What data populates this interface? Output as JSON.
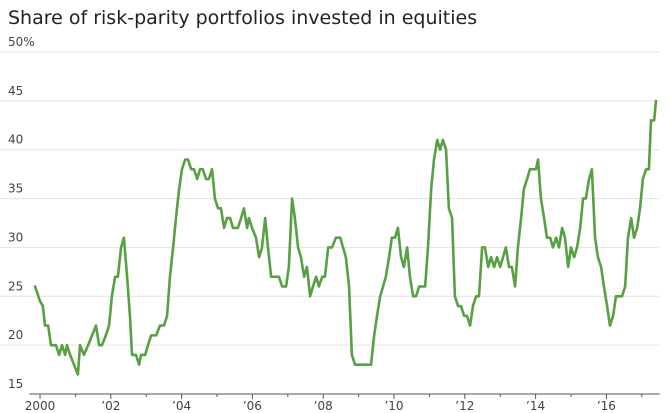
{
  "chart_data": {
    "type": "line",
    "title": "Share of risk-parity portfolios invested in equities",
    "color": "#57a043",
    "grid": true,
    "xlim": [
      1999.7,
      2017.5
    ],
    "ylim": [
      15,
      50
    ],
    "xticks": [
      2000,
      {
        "value": 2002,
        "label": "’02"
      },
      {
        "value": 2004,
        "label": "’04"
      },
      {
        "value": 2006,
        "label": "’06"
      },
      {
        "value": 2008,
        "label": "’08"
      },
      {
        "value": 2010,
        "label": "’10"
      },
      {
        "value": 2012,
        "label": "’12"
      },
      {
        "value": 2014,
        "label": "’14"
      },
      {
        "value": 2016,
        "label": "’16"
      }
    ],
    "xminorticks": [
      2001,
      2003,
      2005,
      2007,
      2009,
      2011,
      2013,
      2015,
      2017
    ],
    "yticks": [
      15,
      20,
      25,
      30,
      35,
      40,
      45,
      {
        "value": 50,
        "label": "50%"
      }
    ],
    "x": [
      1999.86,
      2000.0,
      2000.08,
      2000.14,
      2000.23,
      2000.31,
      2000.45,
      2000.54,
      2000.62,
      2000.71,
      2000.76,
      2000.85,
      2000.96,
      2001.07,
      2001.13,
      2001.24,
      2001.36,
      2001.47,
      2001.58,
      2001.67,
      2001.75,
      2001.86,
      2001.95,
      2002.03,
      2002.12,
      2002.2,
      2002.29,
      2002.37,
      2002.46,
      2002.54,
      2002.6,
      2002.71,
      2002.8,
      2002.85,
      2002.97,
      2003.05,
      2003.14,
      2003.28,
      2003.39,
      2003.5,
      2003.59,
      2003.67,
      2003.76,
      2003.84,
      2003.93,
      2004.01,
      2004.1,
      2004.18,
      2004.27,
      2004.35,
      2004.44,
      2004.52,
      2004.6,
      2004.69,
      2004.77,
      2004.86,
      2004.94,
      2005.03,
      2005.11,
      2005.2,
      2005.28,
      2005.37,
      2005.45,
      2005.59,
      2005.68,
      2005.76,
      2005.85,
      2005.9,
      2005.99,
      2006.1,
      2006.19,
      2006.27,
      2006.36,
      2006.44,
      2006.53,
      2006.64,
      2006.75,
      2006.84,
      2006.95,
      2007.03,
      2007.12,
      2007.2,
      2007.29,
      2007.37,
      2007.46,
      2007.54,
      2007.63,
      2007.71,
      2007.8,
      2007.88,
      2007.97,
      2008.05,
      2008.14,
      2008.25,
      2008.36,
      2008.48,
      2008.56,
      2008.64,
      2008.73,
      2008.81,
      2008.9,
      2009.18,
      2009.35,
      2009.44,
      2009.52,
      2009.61,
      2009.69,
      2009.77,
      2009.86,
      2009.94,
      2010.03,
      2010.11,
      2010.2,
      2010.28,
      2010.37,
      2010.45,
      2010.54,
      2010.62,
      2010.71,
      2010.79,
      2010.88,
      2010.96,
      2011.05,
      2011.13,
      2011.22,
      2011.3,
      2011.38,
      2011.47,
      2011.55,
      2011.64,
      2011.72,
      2011.81,
      2011.89,
      2011.98,
      2012.06,
      2012.15,
      2012.23,
      2012.32,
      2012.4,
      2012.49,
      2012.57,
      2012.66,
      2012.74,
      2012.83,
      2012.91,
      2013.0,
      2013.08,
      2013.16,
      2013.25,
      2013.33,
      2013.42,
      2013.5,
      2013.59,
      2013.67,
      2013.76,
      2013.84,
      2013.93,
      2014.01,
      2014.07,
      2014.15,
      2014.24,
      2014.32,
      2014.41,
      2014.49,
      2014.58,
      2014.66,
      2014.75,
      2014.83,
      2014.92,
      2015.0,
      2015.09,
      2015.17,
      2015.26,
      2015.34,
      2015.42,
      2015.51,
      2015.59,
      2015.68,
      2015.76,
      2015.85,
      2015.93,
      2016.02,
      2016.1,
      2016.19,
      2016.27,
      2016.36,
      2016.44,
      2016.53,
      2016.61,
      2016.7,
      2016.78,
      2016.87,
      2016.95,
      2017.03,
      2017.12,
      2017.2,
      2017.26,
      2017.35,
      2017.4
    ],
    "values": [
      26,
      24.5,
      24,
      22,
      22,
      20,
      20,
      19,
      20,
      19,
      20,
      19,
      18,
      17,
      20,
      19,
      20,
      21,
      22,
      20,
      20,
      21,
      22,
      25,
      27,
      27,
      30,
      31,
      27,
      23,
      19,
      19,
      18,
      19,
      19,
      20,
      21,
      21,
      22,
      22,
      23,
      27,
      30,
      33,
      36,
      38,
      39,
      39,
      38,
      38,
      37,
      38,
      38,
      37,
      37,
      38,
      35,
      34,
      34,
      32,
      33,
      33,
      32,
      32,
      33,
      34,
      32,
      33,
      32,
      31,
      29,
      30,
      33,
      30,
      27,
      27,
      27,
      26,
      26,
      28,
      35,
      33,
      30,
      29,
      27,
      28,
      25,
      26,
      27,
      26,
      27,
      27,
      30,
      30,
      31,
      31,
      30,
      29,
      26,
      19,
      18,
      18,
      18,
      21,
      23,
      25,
      26,
      27,
      29,
      31,
      31,
      32,
      29,
      28,
      30,
      27,
      25,
      25,
      26,
      26,
      26,
      30,
      36,
      39,
      41,
      40,
      41,
      40,
      34,
      33,
      25,
      24,
      24,
      23,
      23,
      22,
      24,
      25,
      25,
      30,
      30,
      28,
      29,
      28,
      29,
      28,
      29,
      30,
      28,
      28,
      26,
      30,
      33,
      36,
      37,
      38,
      38,
      38,
      39,
      35,
      33,
      31,
      31,
      30,
      31,
      30,
      32,
      31,
      28,
      30,
      29,
      30,
      32,
      35,
      35,
      37,
      38,
      31,
      29,
      28,
      26,
      24,
      22,
      23,
      25,
      25,
      25,
      26,
      31,
      33,
      31,
      32,
      34,
      37,
      38,
      38,
      43,
      43,
      45
    ]
  }
}
